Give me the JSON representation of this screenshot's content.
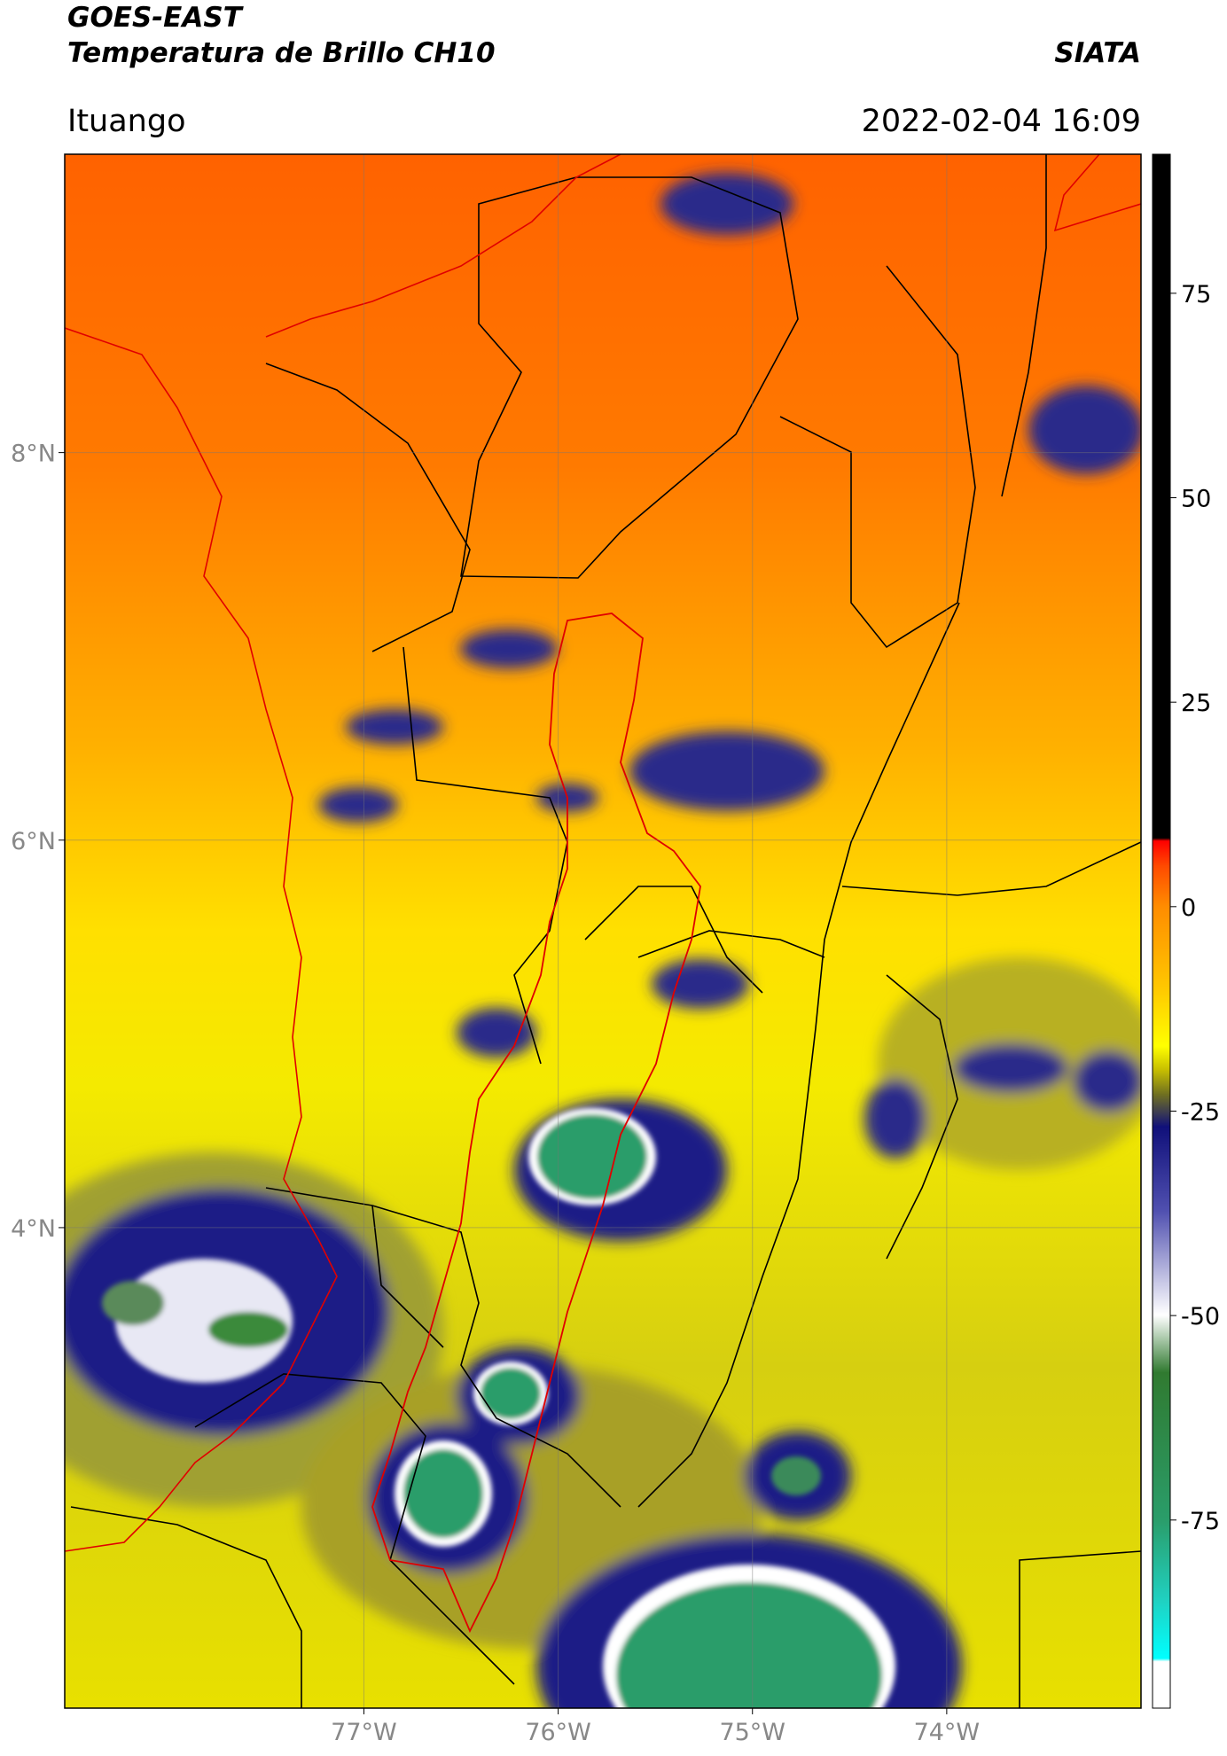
{
  "header": {
    "title": "GOES-EAST",
    "subtitle": "Temperatura de Brillo CH10",
    "source": "SIATA",
    "location": "Ituango",
    "timestamp": "2022-02-04 16:09"
  },
  "map": {
    "xlim": [
      -78.54,
      -73.0
    ],
    "ylim": [
      1.52,
      9.54
    ],
    "xticks": [
      {
        "value": -77,
        "label": "77°W"
      },
      {
        "value": -76,
        "label": "76°W"
      },
      {
        "value": -75,
        "label": "75°W"
      },
      {
        "value": -74,
        "label": "74°W"
      }
    ],
    "yticks": [
      {
        "value": 8,
        "label": "8°N"
      },
      {
        "value": 6,
        "label": "6°N"
      },
      {
        "value": 4,
        "label": "4°N"
      }
    ]
  },
  "colorbar": {
    "lim": [
      -98,
      92
    ],
    "ticks": [
      75,
      50,
      25,
      0,
      -25,
      -50,
      -75
    ]
  }
}
